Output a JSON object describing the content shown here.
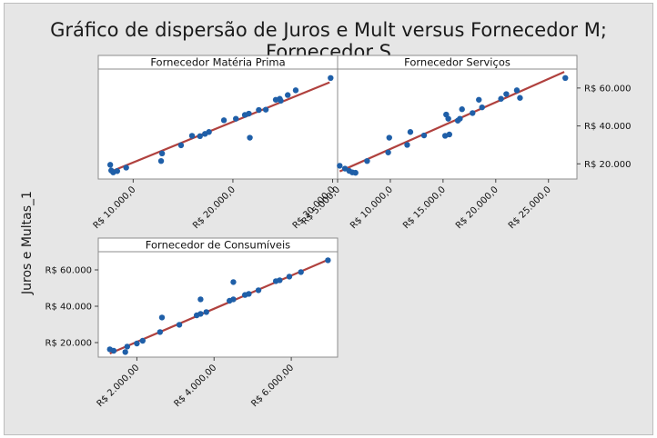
{
  "title": "Gráfico de dispersão de Juros e Mult versus Fornecedor M; Fornecedor S",
  "ylabel": "Juros e Multas_1",
  "colors": {
    "points": "#1f5fa8",
    "fit_line": "#b0413e",
    "background": "#e6e6e6",
    "panel": "#ffffff"
  },
  "chart_data": [
    {
      "type": "scatter",
      "panel_title": "Fornecedor Matéria Prima",
      "xlim": [
        6500,
        30500
      ],
      "ylim": [
        12000,
        70000
      ],
      "x_ticks": [
        10000,
        20000,
        30000
      ],
      "x_tick_labels": [
        "R$ 10.000,0",
        "R$ 20.000,0",
        "R$ 30.000,0"
      ],
      "fit_line": {
        "x": [
          7800,
          29700
        ],
        "y": [
          16000,
          63000
        ]
      },
      "points": [
        [
          7700,
          19500
        ],
        [
          7800,
          16500
        ],
        [
          8000,
          15500
        ],
        [
          8400,
          16200
        ],
        [
          9300,
          18000
        ],
        [
          12800,
          21500
        ],
        [
          12900,
          25500
        ],
        [
          14800,
          29800
        ],
        [
          15900,
          34800
        ],
        [
          16700,
          34600
        ],
        [
          17200,
          35800
        ],
        [
          17600,
          36800
        ],
        [
          19100,
          43000
        ],
        [
          20300,
          43800
        ],
        [
          21200,
          45800
        ],
        [
          21600,
          46500
        ],
        [
          21700,
          33800
        ],
        [
          22600,
          48400
        ],
        [
          23300,
          48600
        ],
        [
          24300,
          53800
        ],
        [
          24700,
          54300
        ],
        [
          24800,
          53300
        ],
        [
          25500,
          56300
        ],
        [
          26300,
          58800
        ],
        [
          29800,
          65300
        ]
      ]
    },
    {
      "type": "scatter",
      "panel_title": "Fornecedor Serviços",
      "xlim": [
        5000,
        27700
      ],
      "ylim": [
        12000,
        70000
      ],
      "x_ticks": [
        5000,
        10000,
        15000,
        20000,
        25000
      ],
      "x_tick_labels": [
        "R$ 5.000,0",
        "R$ 10.000,0",
        "R$ 15.000,0",
        "R$ 20.000,0",
        "R$ 25.000,0"
      ],
      "y_ticks": [
        20000,
        40000,
        60000
      ],
      "y_tick_labels": [
        "R$ 20.000",
        "R$ 40.000",
        "R$ 60.000"
      ],
      "fit_line": {
        "x": [
          5200,
          26500
        ],
        "y": [
          16000,
          68500
        ]
      },
      "points": [
        [
          5200,
          19000
        ],
        [
          5700,
          17500
        ],
        [
          6100,
          16300
        ],
        [
          6400,
          15500
        ],
        [
          6700,
          15300
        ],
        [
          7800,
          21500
        ],
        [
          9800,
          26000
        ],
        [
          9900,
          33800
        ],
        [
          11600,
          30000
        ],
        [
          11900,
          36800
        ],
        [
          13200,
          35000
        ],
        [
          15200,
          34800
        ],
        [
          15300,
          46000
        ],
        [
          15500,
          43800
        ],
        [
          15600,
          35500
        ],
        [
          16400,
          42800
        ],
        [
          16600,
          43800
        ],
        [
          16800,
          48800
        ],
        [
          17800,
          46800
        ],
        [
          18400,
          53800
        ],
        [
          18700,
          49800
        ],
        [
          20500,
          54300
        ],
        [
          21000,
          56800
        ],
        [
          22000,
          58800
        ],
        [
          22300,
          54800
        ],
        [
          26600,
          65300
        ]
      ]
    },
    {
      "type": "scatter",
      "panel_title": "Fornecedor de Consumíveis",
      "xlim": [
        1000,
        7200
      ],
      "ylim": [
        12000,
        70000
      ],
      "x_ticks": [
        2000,
        4000,
        6000
      ],
      "x_tick_labels": [
        "R$ 2.000,00",
        "R$ 4.000,00",
        "R$ 6.000,00"
      ],
      "y_ticks": [
        20000,
        40000,
        60000
      ],
      "y_tick_labels": [
        "R$ 20.000",
        "R$ 40.000",
        "R$ 60.000"
      ],
      "fit_line": {
        "x": [
          1300,
          7000
        ],
        "y": [
          14000,
          66000
        ]
      },
      "points": [
        [
          1300,
          16300
        ],
        [
          1400,
          15500
        ],
        [
          1700,
          14800
        ],
        [
          1750,
          17800
        ],
        [
          2000,
          19500
        ],
        [
          2150,
          21000
        ],
        [
          2600,
          25800
        ],
        [
          2650,
          33800
        ],
        [
          3100,
          29800
        ],
        [
          3550,
          35000
        ],
        [
          3650,
          35800
        ],
        [
          3650,
          43800
        ],
        [
          3800,
          36800
        ],
        [
          4400,
          43000
        ],
        [
          4500,
          43800
        ],
        [
          4500,
          53300
        ],
        [
          4800,
          46200
        ],
        [
          4900,
          46800
        ],
        [
          5150,
          48800
        ],
        [
          5600,
          53800
        ],
        [
          5700,
          54300
        ],
        [
          5950,
          56300
        ],
        [
          6250,
          58800
        ],
        [
          6950,
          65300
        ]
      ]
    }
  ]
}
